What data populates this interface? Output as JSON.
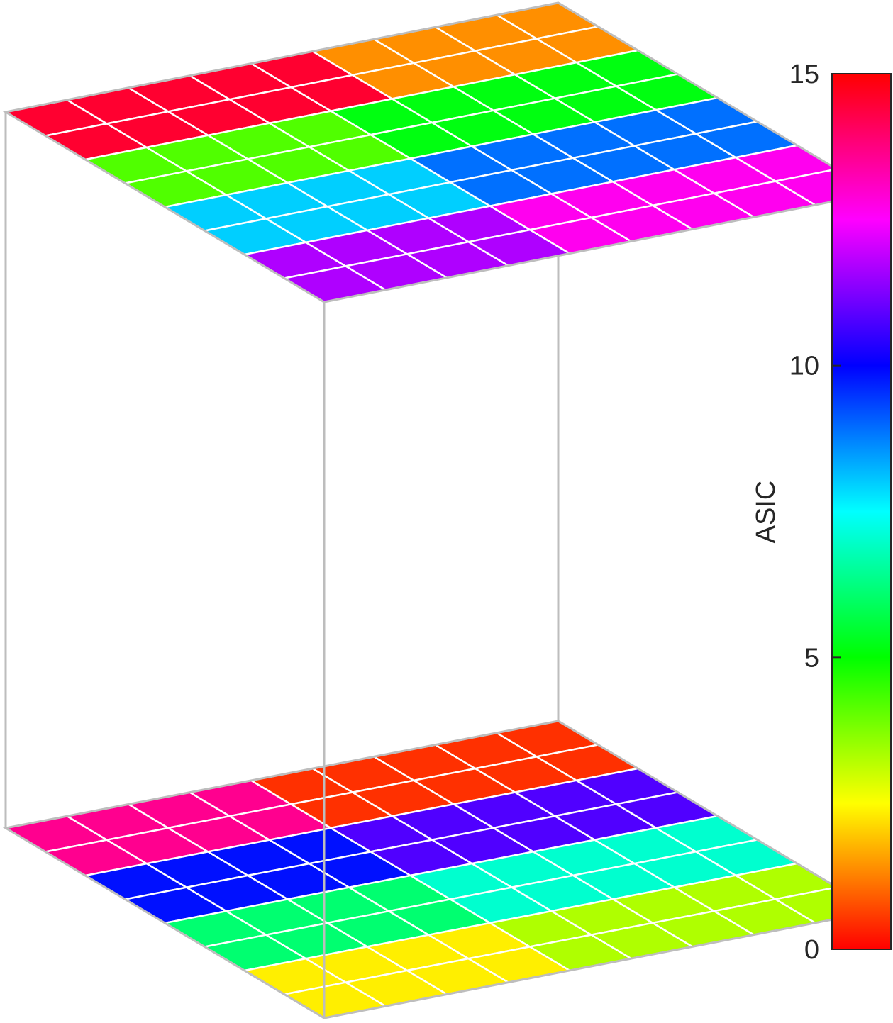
{
  "chart_data": {
    "type": "heatmap",
    "title": "",
    "colorbar": {
      "label": "ASIC",
      "min": 0,
      "max": 15,
      "ticks": [
        0,
        5,
        10,
        15
      ],
      "tick_labels": [
        "0",
        "5",
        "10",
        "15"
      ],
      "colormap": "hsv"
    },
    "layers": [
      {
        "name": "top",
        "values": [
          [
            15,
            15,
            15,
            15,
            15,
            1,
            1,
            1,
            1
          ],
          [
            15,
            15,
            15,
            15,
            15,
            1,
            1,
            1,
            1
          ],
          [
            4,
            4,
            4,
            4,
            5,
            5,
            5,
            5,
            5
          ],
          [
            4,
            4,
            4,
            4,
            5,
            5,
            5,
            5,
            5
          ],
          [
            8,
            8,
            8,
            8,
            9,
            9,
            9,
            9,
            9
          ],
          [
            8,
            8,
            8,
            8,
            9,
            9,
            9,
            9,
            9
          ],
          [
            12,
            12,
            12,
            12,
            13,
            13,
            13,
            13,
            13
          ],
          [
            12,
            12,
            12,
            12,
            13,
            13,
            13,
            13,
            13
          ]
        ]
      },
      {
        "name": "bottom",
        "values": [
          [
            14,
            14,
            14,
            14,
            0,
            0,
            0,
            0,
            0
          ],
          [
            14,
            14,
            14,
            14,
            0,
            0,
            0,
            0,
            0
          ],
          [
            10,
            10,
            10,
            10,
            11,
            11,
            11,
            11,
            11
          ],
          [
            10,
            10,
            10,
            10,
            11,
            11,
            11,
            11,
            11
          ],
          [
            6,
            6,
            6,
            6,
            7,
            7,
            7,
            7,
            7
          ],
          [
            6,
            6,
            6,
            6,
            7,
            7,
            7,
            7,
            7
          ],
          [
            2,
            2,
            2,
            2,
            3,
            3,
            3,
            3,
            3
          ],
          [
            2,
            2,
            2,
            2,
            3,
            3,
            3,
            3,
            3
          ]
        ]
      }
    ],
    "grid": false,
    "legend": "colorbar-right"
  }
}
